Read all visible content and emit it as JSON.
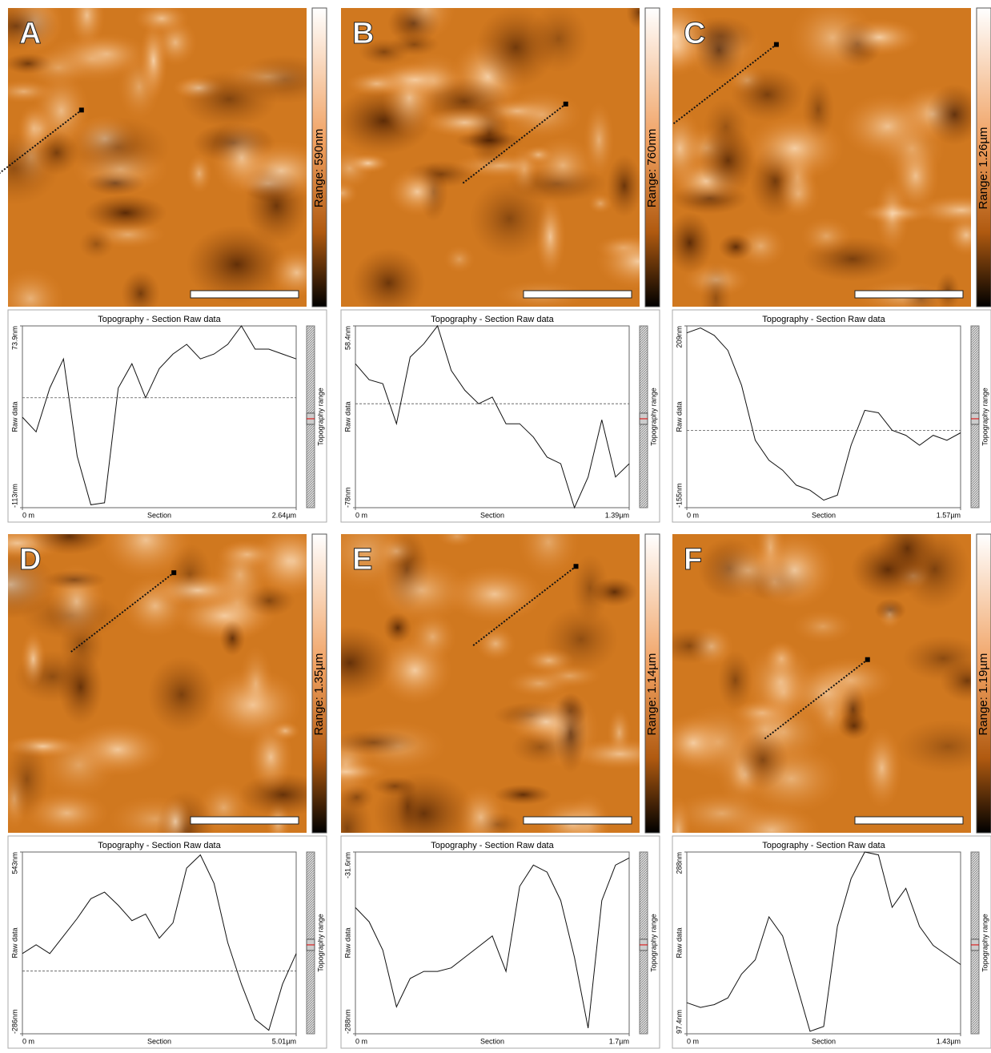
{
  "chart_data": [
    {
      "type": "line",
      "panel_label": "A",
      "image_range_label": "Range: 590nm",
      "title": "Topography - Section   Raw data",
      "ylabel": "Raw data",
      "xlabel": "Section",
      "side_label": "Topography range",
      "xlim": [
        0,
        2.64
      ],
      "xticks": [
        {
          "value": 0,
          "label": "0 m"
        },
        {
          "value": 2.64,
          "label": "2.64µm"
        }
      ],
      "ylim": [
        -113,
        73.9
      ],
      "yticks": [
        {
          "value": -113,
          "label": "-113nm"
        },
        {
          "value": 73.9,
          "label": "73.9nm"
        }
      ],
      "mean_line": 0,
      "x": [
        0,
        0.132,
        0.264,
        0.396,
        0.528,
        0.66,
        0.792,
        0.924,
        1.056,
        1.188,
        1.32,
        1.452,
        1.584,
        1.716,
        1.848,
        1.98,
        2.112,
        2.244,
        2.376,
        2.508,
        2.64
      ],
      "values": [
        -20,
        -35,
        10,
        40,
        -60,
        -110,
        -108,
        10,
        35,
        0,
        30,
        45,
        55,
        40,
        45,
        55,
        73.9,
        50,
        50,
        45,
        40
      ]
    },
    {
      "type": "line",
      "panel_label": "B",
      "image_range_label": "Range: 760nm",
      "title": "Topography - Section   Raw data",
      "ylabel": "Raw data",
      "xlabel": "Section",
      "side_label": "Topography range",
      "xlim": [
        0,
        1.39
      ],
      "xticks": [
        {
          "value": 0,
          "label": "0 m"
        },
        {
          "value": 1.39,
          "label": "1.39µm"
        }
      ],
      "ylim": [
        -78,
        58.4
      ],
      "yticks": [
        {
          "value": -78,
          "label": "-78nm"
        },
        {
          "value": 58.4,
          "label": "58.4nm"
        }
      ],
      "mean_line": 0,
      "x": [
        0,
        0.0695,
        0.139,
        0.2085,
        0.278,
        0.3475,
        0.417,
        0.4865,
        0.556,
        0.6255,
        0.695,
        0.7645,
        0.834,
        0.9035,
        0.973,
        1.0425,
        1.112,
        1.1815,
        1.251,
        1.3205,
        1.39
      ],
      "values": [
        30,
        18,
        15,
        -15,
        35,
        45,
        58.4,
        25,
        10,
        0,
        5,
        -15,
        -15,
        -25,
        -40,
        -45,
        -78,
        -55,
        -12,
        -55,
        -45
      ]
    },
    {
      "type": "line",
      "panel_label": "C",
      "image_range_label": "Range: 1.26µm",
      "title": "Topography - Section   Raw data",
      "ylabel": "Raw data",
      "xlabel": "Section",
      "side_label": "Topography range",
      "xlim": [
        0,
        1.57
      ],
      "xticks": [
        {
          "value": 0,
          "label": "0 m"
        },
        {
          "value": 1.57,
          "label": "1.57µm"
        }
      ],
      "ylim": [
        -155,
        209
      ],
      "yticks": [
        {
          "value": -155,
          "label": "-155nm"
        },
        {
          "value": 209,
          "label": "209nm"
        }
      ],
      "mean_line": 0,
      "x": [
        0,
        0.0785,
        0.157,
        0.2355,
        0.314,
        0.3925,
        0.471,
        0.5495,
        0.628,
        0.7065,
        0.785,
        0.8635,
        0.942,
        1.0205,
        1.099,
        1.1775,
        1.256,
        1.3345,
        1.413,
        1.4915,
        1.57
      ],
      "values": [
        195,
        205,
        190,
        160,
        90,
        -20,
        -60,
        -80,
        -110,
        -120,
        -140,
        -130,
        -30,
        40,
        35,
        0,
        -10,
        -30,
        -10,
        -20,
        -5
      ]
    },
    {
      "type": "line",
      "panel_label": "D",
      "image_range_label": "Range: 1.35µm",
      "title": "Topography - Section   Raw data",
      "ylabel": "Raw data",
      "xlabel": "Section",
      "side_label": "Topography range",
      "xlim": [
        0,
        5.01
      ],
      "xticks": [
        {
          "value": 0,
          "label": "0 m"
        },
        {
          "value": 5.01,
          "label": "5.01µm"
        }
      ],
      "ylim": [
        -286,
        543
      ],
      "yticks": [
        {
          "value": -286,
          "label": "-286nm"
        },
        {
          "value": 543,
          "label": "543nm"
        }
      ],
      "mean_line": 0,
      "x": [
        0,
        0.2505,
        0.501,
        0.7515,
        1.002,
        1.2525,
        1.503,
        1.7535,
        2.004,
        2.2545,
        2.505,
        2.7555,
        3.006,
        3.2565,
        3.507,
        3.7575,
        4.008,
        4.2585,
        4.509,
        4.7595,
        5.01
      ],
      "values": [
        80,
        120,
        80,
        160,
        240,
        330,
        360,
        300,
        230,
        260,
        150,
        220,
        470,
        530,
        400,
        130,
        -60,
        -220,
        -270,
        -60,
        80
      ]
    },
    {
      "type": "line",
      "panel_label": "E",
      "image_range_label": "Range: 1.14µm",
      "title": "Topography - Section   Raw data",
      "ylabel": "Raw data",
      "xlabel": "Section",
      "side_label": "Topography range",
      "xlim": [
        0,
        1.7
      ],
      "xticks": [
        {
          "value": 0,
          "label": "0 m"
        },
        {
          "value": 1.7,
          "label": "1.7µm"
        }
      ],
      "ylim": [
        -288,
        -31.6
      ],
      "yticks": [
        {
          "value": -288,
          "label": "-288nm"
        },
        {
          "value": -31.6,
          "label": "-31.6nm"
        }
      ],
      "x": [
        0,
        0.085,
        0.17,
        0.255,
        0.34,
        0.425,
        0.51,
        0.595,
        0.68,
        0.765,
        0.85,
        0.935,
        1.02,
        1.105,
        1.19,
        1.275,
        1.36,
        1.445,
        1.53,
        1.615,
        1.7
      ],
      "values": [
        -110,
        -130,
        -170,
        -250,
        -210,
        -200,
        -200,
        -195,
        -180,
        -165,
        -150,
        -200,
        -80,
        -50,
        -60,
        -100,
        -180,
        -280,
        -100,
        -50,
        -40
      ]
    },
    {
      "type": "line",
      "panel_label": "F",
      "image_range_label": "Range: 1.19µm",
      "title": "Topography - Section   Raw data",
      "ylabel": "Raw data",
      "xlabel": "Section",
      "side_label": "Topography range",
      "xlim": [
        0,
        1.43
      ],
      "xticks": [
        {
          "value": 0,
          "label": "0 m"
        },
        {
          "value": 1.43,
          "label": "1.43µm"
        }
      ],
      "ylim": [
        97.4,
        288
      ],
      "yticks": [
        {
          "value": 97.4,
          "label": "97.4nm"
        },
        {
          "value": 288,
          "label": "288nm"
        }
      ],
      "x": [
        0,
        0.0715,
        0.143,
        0.2145,
        0.286,
        0.3575,
        0.429,
        0.5005,
        0.572,
        0.6435,
        0.715,
        0.7865,
        0.858,
        0.9295,
        1.001,
        1.0725,
        1.144,
        1.2155,
        1.287,
        1.3585,
        1.43
      ],
      "values": [
        130,
        125,
        128,
        135,
        160,
        175,
        220,
        200,
        150,
        100,
        105,
        210,
        260,
        288,
        285,
        230,
        250,
        210,
        190,
        180,
        170
      ]
    }
  ]
}
